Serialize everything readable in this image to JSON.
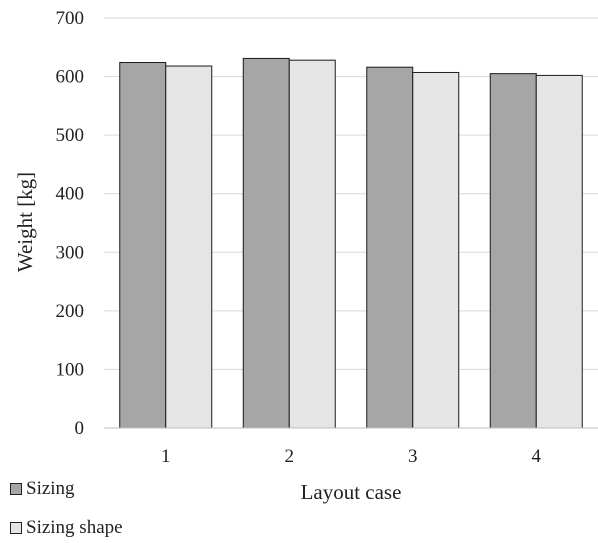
{
  "chart_data": {
    "type": "bar",
    "xlabel": "Layout case",
    "ylabel": "Weight [kg]",
    "categories": [
      "1",
      "2",
      "3",
      "4"
    ],
    "ylim": [
      0,
      700
    ],
    "yticks": [
      0,
      100,
      200,
      300,
      400,
      500,
      600,
      700
    ],
    "grid": true,
    "legend_position": "bottom-left",
    "series": [
      {
        "name": "Sizing",
        "color": "#a6a6a6",
        "values": [
          624,
          631,
          616,
          605
        ]
      },
      {
        "name": "Sizing shape",
        "color": "#e5e5e5",
        "values": [
          618,
          628,
          607,
          602
        ]
      }
    ]
  }
}
